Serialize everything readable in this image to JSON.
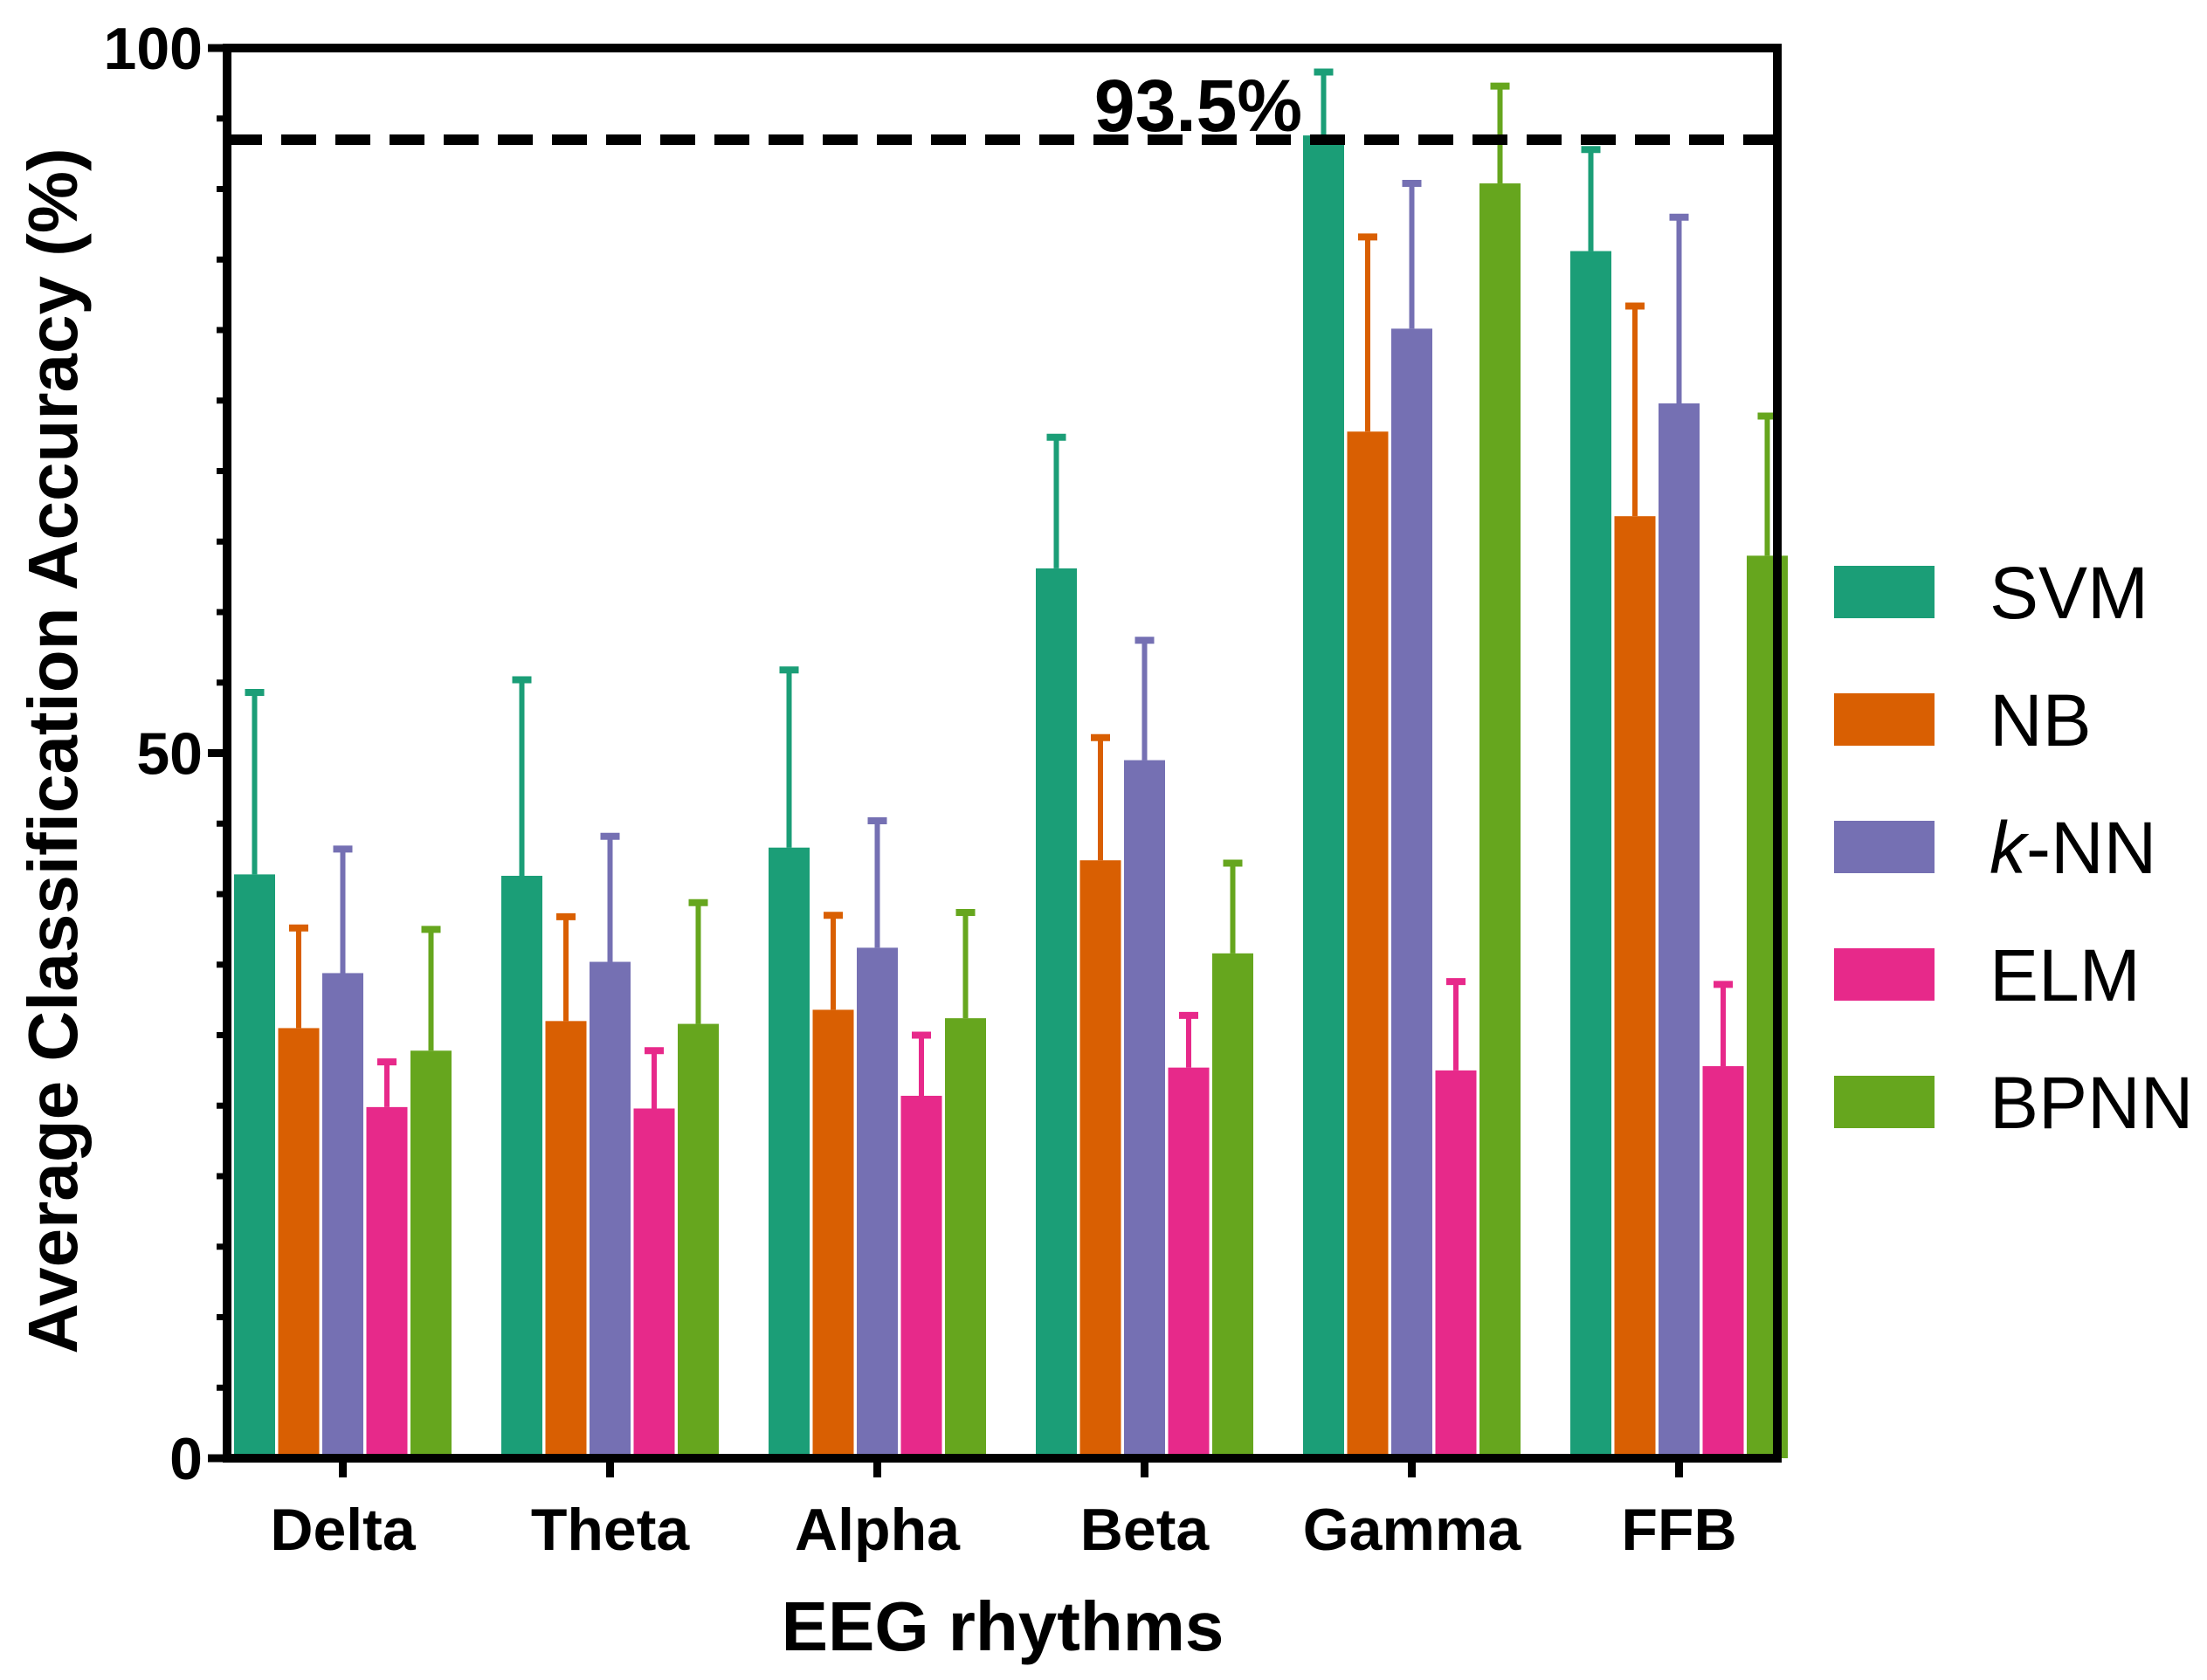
{
  "chart_data": {
    "type": "bar",
    "xlabel": "EEG rhythms",
    "ylabel": "Average Classification Accuracy (%)",
    "ylim": [
      0,
      100
    ],
    "yticks": [
      "0",
      "50",
      "100"
    ],
    "categories": [
      "Delta",
      "Theta",
      "Alpha",
      "Beta",
      "Gamma",
      "FFB"
    ],
    "series": [
      {
        "name": "SVM",
        "color": "#1b9e77",
        "values": [
          41.4,
          41.3,
          43.3,
          63.1,
          93.8,
          85.6
        ],
        "errors": [
          12.9,
          13.9,
          12.6,
          9.3,
          4.5,
          7.2
        ]
      },
      {
        "name": "NB",
        "color": "#d95f02",
        "values": [
          30.5,
          31.0,
          31.8,
          42.4,
          72.8,
          66.8
        ],
        "errors": [
          7.1,
          7.4,
          6.7,
          8.7,
          13.8,
          14.9
        ]
      },
      {
        "name": "k-NN",
        "color": "#7570b3",
        "values": [
          34.4,
          35.2,
          36.2,
          49.5,
          80.1,
          74.8
        ],
        "errors": [
          8.8,
          8.9,
          9.0,
          8.5,
          10.3,
          13.2
        ]
      },
      {
        "name": "ELM",
        "color": "#e7298a",
        "values": [
          24.9,
          24.8,
          25.7,
          27.7,
          27.5,
          27.8
        ],
        "errors": [
          3.2,
          4.1,
          4.3,
          3.7,
          6.3,
          5.8
        ]
      },
      {
        "name": "BPNN",
        "color": "#66a61e",
        "values": [
          28.9,
          30.8,
          31.2,
          35.8,
          90.4,
          64.0
        ],
        "errors": [
          8.6,
          8.6,
          7.5,
          6.4,
          6.9,
          9.9
        ]
      }
    ],
    "reference_line": {
      "value": 93.5,
      "label": "93.5%"
    },
    "legend_position": "right"
  }
}
